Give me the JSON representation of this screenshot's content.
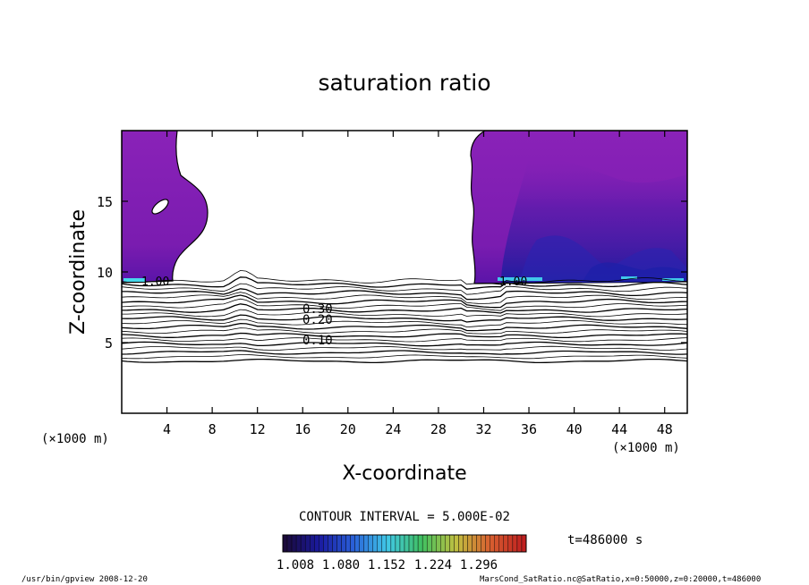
{
  "chart_data": {
    "type": "heatmap",
    "title": "saturation ratio",
    "xlabel": "X-coordinate",
    "ylabel": "Z-coordinate",
    "x_unit": "(×1000 m)",
    "z_unit": "(×1000 m)",
    "xlim": [
      0,
      50
    ],
    "ylim": [
      0,
      20
    ],
    "x_ticks": [
      4,
      8,
      12,
      16,
      20,
      24,
      28,
      32,
      36,
      40,
      44,
      48
    ],
    "y_ticks": [
      5,
      10,
      15
    ],
    "contour_interval_text": "CONTOUR INTERVAL = 5.000E-02",
    "time_text": "t=486000 s",
    "colorbar_labels": [
      "1.008",
      "1.080",
      "1.152",
      "1.224",
      "1.296"
    ],
    "colorbar_range": [
      1.008,
      1.3
    ],
    "colors": {
      "supersaturated_fill": "#8b1fb4",
      "deep_blue": "#1a1a9a",
      "cyan": "#3fd8e8",
      "colormap": [
        "#1a0a3a",
        "#1a1aa0",
        "#2a60d8",
        "#40c8e8",
        "#40c060",
        "#c0c040",
        "#d86030",
        "#c02020"
      ]
    },
    "contour_labels": [
      {
        "text": "1.00",
        "x": 2.2,
        "z": 9.8
      },
      {
        "text": "1.00",
        "x": 34.6,
        "z": 9.8
      },
      {
        "text": "0.20",
        "x": 17.6,
        "z": 6.8
      },
      {
        "text": "0.10",
        "x": 17.6,
        "z": 5.2
      },
      {
        "text": "0.30",
        "x": 17.8,
        "z": 7.6
      }
    ],
    "saturated_regions": [
      {
        "name": "left",
        "x_range": [
          0,
          7.6
        ],
        "z_range": [
          9.6,
          20
        ]
      },
      {
        "name": "right",
        "x_range": [
          30.9,
          50
        ],
        "z_range": [
          9.4,
          20
        ]
      }
    ]
  },
  "footer": {
    "left": "/usr/bin/gpview   2008-12-20",
    "right": "MarsCond_SatRatio.nc@SatRatio,x=0:50000,z=0:20000,t=486000"
  }
}
